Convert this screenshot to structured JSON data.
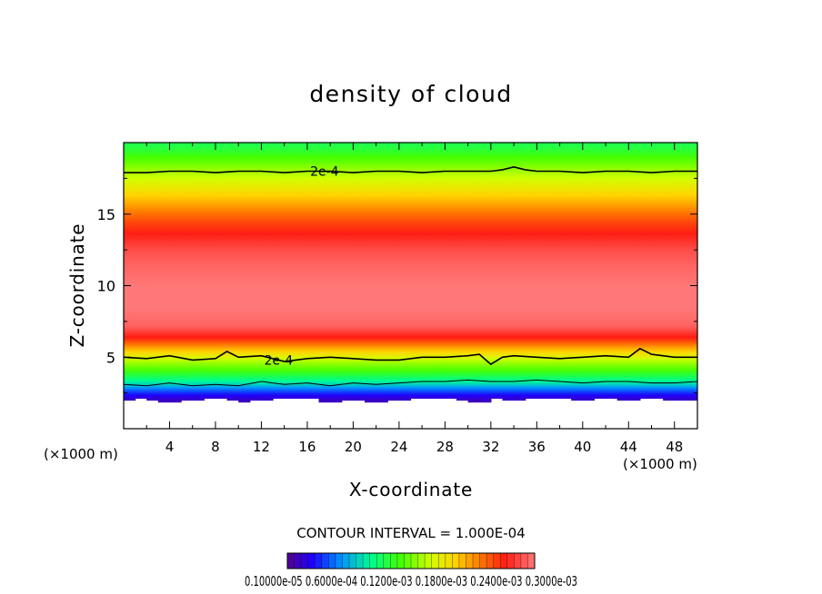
{
  "chart_data": {
    "type": "heatmap",
    "title": "density of cloud",
    "xlabel": "X-coordinate",
    "ylabel": "Z-coordinate",
    "x_unit_label": "(×1000 m)",
    "x_unit_label_right": "(×1000 m)",
    "xlim": [
      0,
      50
    ],
    "ylim": [
      0,
      20
    ],
    "x_ticks": [
      4,
      8,
      12,
      16,
      20,
      24,
      28,
      32,
      36,
      40,
      44,
      48
    ],
    "y_ticks": [
      5,
      10,
      15
    ],
    "contour_interval_text": "CONTOUR INTERVAL = 1.000E-04",
    "contour_labels": [
      {
        "text": "2e-4",
        "x": 17.5,
        "y": 18.0
      },
      {
        "text": "2e-4",
        "x": 13.5,
        "y": 4.8
      }
    ],
    "contours": [
      {
        "level": 0.0002,
        "x": [
          0,
          2,
          4,
          6,
          8,
          10,
          12,
          14,
          16,
          18,
          20,
          22,
          24,
          26,
          28,
          30,
          32,
          33,
          34,
          35,
          36,
          38,
          40,
          42,
          44,
          46,
          48,
          50
        ],
        "z": [
          17.9,
          17.9,
          18.0,
          18.0,
          17.9,
          18.0,
          18.0,
          17.9,
          18.0,
          18.0,
          17.9,
          18.0,
          18.0,
          17.9,
          18.0,
          18.0,
          18.0,
          18.1,
          18.3,
          18.1,
          18.0,
          18.0,
          17.9,
          18.0,
          18.0,
          17.9,
          18.0,
          18.0
        ]
      },
      {
        "level": 0.0002,
        "x": [
          0,
          2,
          4,
          6,
          8,
          9,
          10,
          12,
          14,
          16,
          18,
          20,
          22,
          24,
          26,
          28,
          30,
          31,
          32,
          33,
          34,
          36,
          38,
          40,
          42,
          44,
          45,
          46,
          48,
          50
        ],
        "z": [
          5.0,
          4.9,
          5.1,
          4.8,
          4.9,
          5.4,
          5.0,
          5.1,
          4.7,
          4.9,
          5.0,
          4.9,
          4.8,
          4.8,
          5.0,
          5.0,
          5.1,
          5.2,
          4.5,
          5.0,
          5.1,
          5.0,
          4.9,
          5.0,
          5.1,
          5.0,
          5.6,
          5.2,
          5.0,
          5.0
        ]
      },
      {
        "level": 0.0001,
        "x": [
          0,
          2,
          4,
          6,
          8,
          10,
          12,
          14,
          16,
          18,
          20,
          22,
          24,
          26,
          28,
          30,
          32,
          34,
          36,
          38,
          40,
          42,
          44,
          46,
          48,
          50
        ],
        "z": [
          3.1,
          3.0,
          3.2,
          3.0,
          3.1,
          3.0,
          3.3,
          3.1,
          3.2,
          3.0,
          3.2,
          3.1,
          3.2,
          3.3,
          3.3,
          3.4,
          3.3,
          3.3,
          3.4,
          3.3,
          3.2,
          3.3,
          3.3,
          3.2,
          3.2,
          3.3
        ]
      }
    ],
    "vertical_profile": {
      "z": [
        1.8,
        2.3,
        2.8,
        3.2,
        3.7,
        4.2,
        4.8,
        5.5,
        6.3,
        7.2,
        8.5,
        10.0,
        11.5,
        12.5,
        13.5,
        14.5,
        15.5,
        16.5,
        17.5,
        18.5,
        19.5,
        20.0
      ],
      "value": [
        2e-05,
        4e-05,
        8e-05,
        0.00012,
        0.00015,
        0.00018,
        0.00021,
        0.00026,
        0.00032,
        0.00036,
        0.00037,
        0.00037,
        0.00036,
        0.00035,
        0.00033,
        0.00031,
        0.00028,
        0.00025,
        0.00022,
        0.00019,
        0.00016,
        0.00015
      ]
    },
    "cloud_base_z": {
      "x": [
        0,
        2,
        4,
        6,
        8,
        10,
        12,
        14,
        16,
        18,
        20,
        22,
        24,
        26,
        28,
        30,
        31,
        32,
        34,
        36,
        38,
        40,
        42,
        44,
        46,
        48,
        50
      ],
      "z": [
        2.0,
        2.1,
        1.8,
        2.0,
        2.2,
        1.9,
        2.0,
        2.1,
        2.2,
        1.8,
        2.0,
        1.9,
        2.0,
        2.2,
        2.1,
        2.0,
        1.7,
        2.1,
        2.0,
        2.2,
        2.1,
        2.0,
        2.1,
        2.0,
        2.2,
        2.0,
        2.0
      ]
    },
    "colorbar": {
      "vmin": 1e-05,
      "vmax": 0.00037,
      "tick_text": "0.10000e-05 0.6000e-04 0.1200e-03 0.1800e-03 0.2400e-03 0.3000e-03"
    },
    "grid": false,
    "legend": "colorbar-bottom"
  }
}
